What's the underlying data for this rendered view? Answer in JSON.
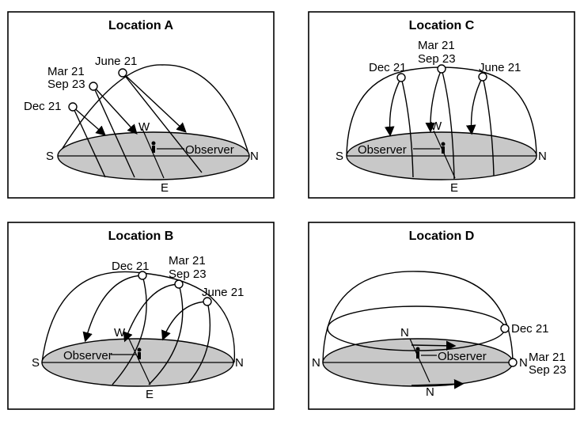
{
  "panels": {
    "a": {
      "title": "Location A",
      "s": "S",
      "n": "N",
      "e": "E",
      "w": "W",
      "observer": "Observer",
      "dec": "Dec 21",
      "mar": "Mar 21",
      "sep": "Sep 23",
      "jun": "June 21"
    },
    "c": {
      "title": "Location C",
      "s": "S",
      "n": "N",
      "e": "E",
      "w": "W",
      "observer": "Observer",
      "dec": "Dec 21",
      "mar": "Mar 21",
      "sep": "Sep 23",
      "jun": "June 21"
    },
    "b": {
      "title": "Location B",
      "s": "S",
      "n": "N",
      "e": "E",
      "w": "W",
      "observer": "Observer",
      "dec": "Dec 21",
      "mar": "Mar 21",
      "sep": "Sep 23",
      "jun": "June 21"
    },
    "d": {
      "title": "Location D",
      "n_left": "N",
      "n_right": "N",
      "n_top": "N",
      "n_bottom": "N",
      "observer": "Observer",
      "dec": "Dec 21",
      "mar": "Mar 21",
      "sep": "Sep 23"
    }
  }
}
